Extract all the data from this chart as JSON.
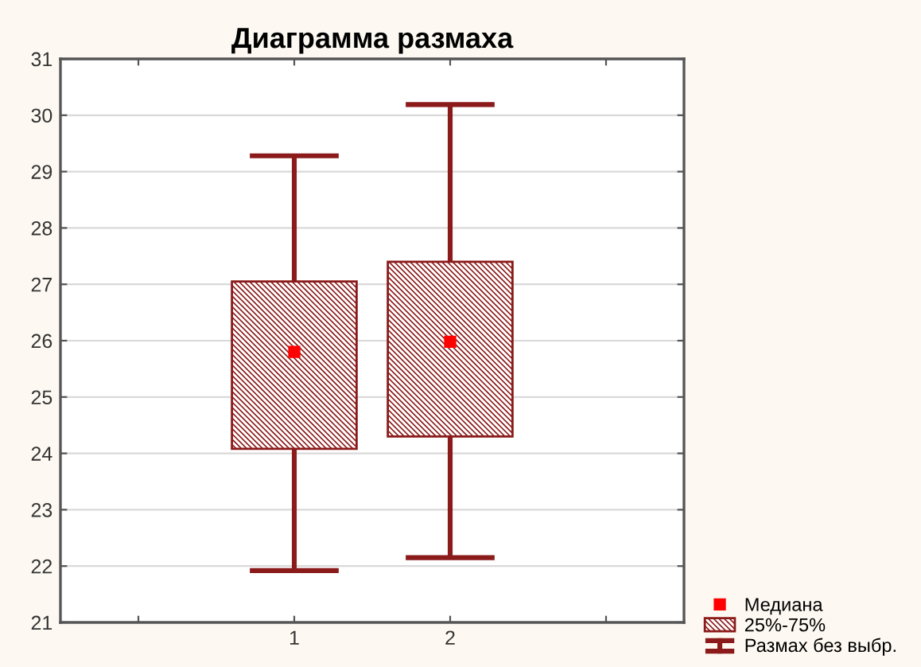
{
  "chart_data": {
    "type": "box",
    "title": "Диаграмма размаха",
    "categories": [
      null,
      "1",
      "2",
      null
    ],
    "series": [
      {
        "name": "Медиана",
        "type": "scatter",
        "color": "#ff0000",
        "values": [
          null,
          25.8,
          25.98,
          null
        ]
      },
      {
        "name": "25%-75%",
        "color": "#8b1a1a",
        "boxes": [
          null,
          {
            "low": 21.92,
            "q1": 24.08,
            "q3": 27.05,
            "high": 29.28
          },
          {
            "low": 22.15,
            "q1": 24.3,
            "q3": 27.4,
            "high": 30.19
          },
          null
        ]
      }
    ],
    "annotations": [
      "Размах без выбр."
    ],
    "ylim": [
      21,
      31
    ],
    "yticks": [
      21,
      22,
      23,
      24,
      25,
      26,
      27,
      28,
      29,
      30,
      31
    ],
    "grid": "y",
    "legend": "bottom right",
    "marker": "square"
  }
}
